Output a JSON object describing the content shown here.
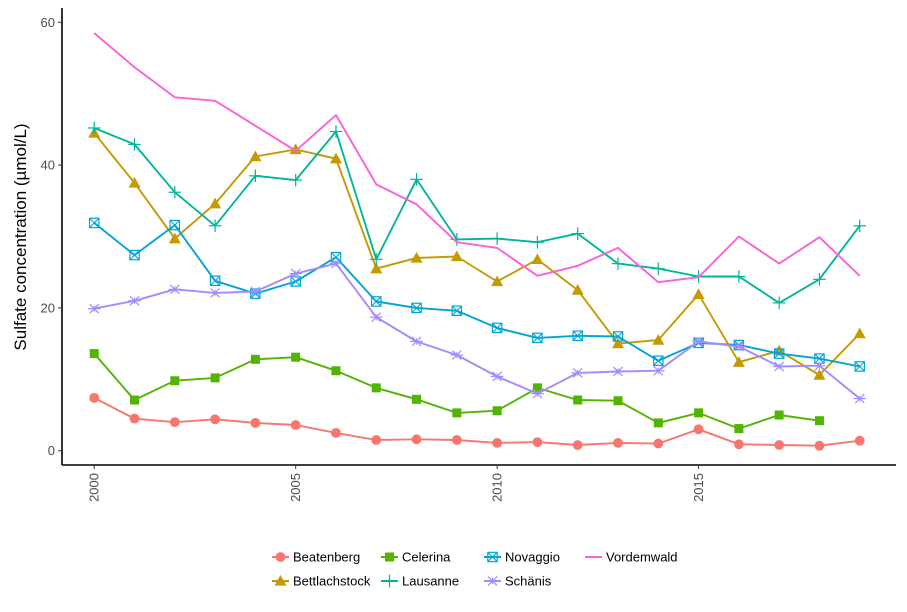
{
  "chart_data": {
    "type": "line",
    "title": "",
    "xlabel": "",
    "ylabel": "Sulfate concentration (µmol/L)",
    "xlim": [
      1999.2,
      2019.9
    ],
    "ylim": [
      -2,
      62
    ],
    "x_ticks": [
      2000,
      2005,
      2010,
      2015
    ],
    "y_ticks": [
      0,
      20,
      40,
      60
    ],
    "grid": false,
    "legend_position": "bottom",
    "series": [
      {
        "name": "Beatenberg",
        "color": "#f8766d",
        "marker": "circle",
        "x": [
          2000,
          2001,
          2002,
          2003,
          2004,
          2005,
          2006,
          2007,
          2008,
          2009,
          2010,
          2011,
          2012,
          2013,
          2014,
          2015,
          2016,
          2017,
          2018,
          2019
        ],
        "y": [
          7.4,
          4.5,
          4.0,
          4.4,
          3.9,
          3.6,
          2.5,
          1.5,
          1.6,
          1.5,
          1.1,
          1.2,
          0.8,
          1.1,
          1.0,
          3.0,
          0.9,
          0.8,
          0.7,
          1.4
        ]
      },
      {
        "name": "Bettlachstock",
        "color": "#c49a00",
        "marker": "triangle",
        "x": [
          2000,
          2001,
          2002,
          2003,
          2004,
          2005,
          2006,
          2007,
          2008,
          2009,
          2010,
          2011,
          2012,
          2013,
          2014,
          2015,
          2016,
          2017,
          2018,
          2019
        ],
        "y": [
          44.5,
          37.5,
          29.7,
          34.6,
          41.2,
          42.2,
          40.9,
          25.5,
          27.0,
          27.2,
          23.7,
          26.8,
          22.5,
          15.0,
          15.5,
          21.9,
          12.4,
          14.0,
          10.6,
          16.4
        ]
      },
      {
        "name": "Celerina",
        "color": "#53b400",
        "marker": "square",
        "x": [
          2000,
          2001,
          2002,
          2003,
          2004,
          2005,
          2006,
          2007,
          2008,
          2009,
          2010,
          2011,
          2012,
          2013,
          2014,
          2015,
          2016,
          2017,
          2018
        ],
        "y": [
          13.6,
          7.1,
          9.8,
          10.2,
          12.8,
          13.1,
          11.2,
          8.8,
          7.2,
          5.3,
          5.6,
          8.8,
          7.1,
          7.0,
          3.9,
          5.3,
          3.1,
          5.0,
          4.2
        ]
      },
      {
        "name": "Lausanne",
        "color": "#00b69a",
        "marker": "plus",
        "x": [
          2000,
          2001,
          2002,
          2003,
          2004,
          2005,
          2006,
          2007,
          2008,
          2009,
          2010,
          2011,
          2012,
          2013,
          2014,
          2015,
          2016,
          2017,
          2018,
          2019
        ],
        "y": [
          45.2,
          42.9,
          36.2,
          31.5,
          38.5,
          37.9,
          44.7,
          26.8,
          38.0,
          29.6,
          29.7,
          29.2,
          30.4,
          26.2,
          25.5,
          24.4,
          24.4,
          20.7,
          24.0,
          31.5
        ]
      },
      {
        "name": "Novaggio",
        "color": "#00a5d8",
        "marker": "boxx",
        "x": [
          2000,
          2001,
          2002,
          2003,
          2004,
          2005,
          2006,
          2007,
          2008,
          2009,
          2010,
          2011,
          2012,
          2013,
          2014,
          2015,
          2016,
          2017,
          2018,
          2019
        ],
        "y": [
          31.9,
          27.4,
          31.6,
          23.8,
          22.0,
          23.7,
          27.1,
          20.9,
          20.0,
          19.6,
          17.2,
          15.8,
          16.1,
          16.0,
          12.6,
          15.1,
          14.8,
          13.6,
          12.9,
          11.8
        ]
      },
      {
        "name": "Schänis",
        "color": "#a58aff",
        "marker": "asterisk",
        "x": [
          2000,
          2001,
          2002,
          2003,
          2004,
          2005,
          2006,
          2007,
          2008,
          2009,
          2010,
          2011,
          2012,
          2013,
          2014,
          2015,
          2016,
          2017,
          2018,
          2019
        ],
        "y": [
          19.9,
          21.0,
          22.6,
          22.1,
          22.3,
          24.8,
          26.2,
          18.7,
          15.3,
          13.4,
          10.4,
          8.0,
          10.9,
          11.1,
          11.2,
          15.3,
          14.6,
          11.8,
          11.9,
          7.3
        ]
      },
      {
        "name": "Vordemwald",
        "color": "#fb61d7",
        "marker": "none",
        "x": [
          2000,
          2001,
          2002,
          2003,
          2004,
          2005,
          2006,
          2007,
          2008,
          2009,
          2010,
          2011,
          2012,
          2013,
          2014,
          2015,
          2016,
          2017,
          2018,
          2019
        ],
        "y": [
          58.5,
          53.7,
          49.5,
          49.0,
          45.5,
          42.0,
          47.0,
          37.3,
          34.5,
          29.2,
          28.4,
          24.5,
          25.9,
          28.4,
          23.6,
          24.3,
          30.0,
          26.2,
          29.9,
          24.5
        ]
      }
    ]
  }
}
